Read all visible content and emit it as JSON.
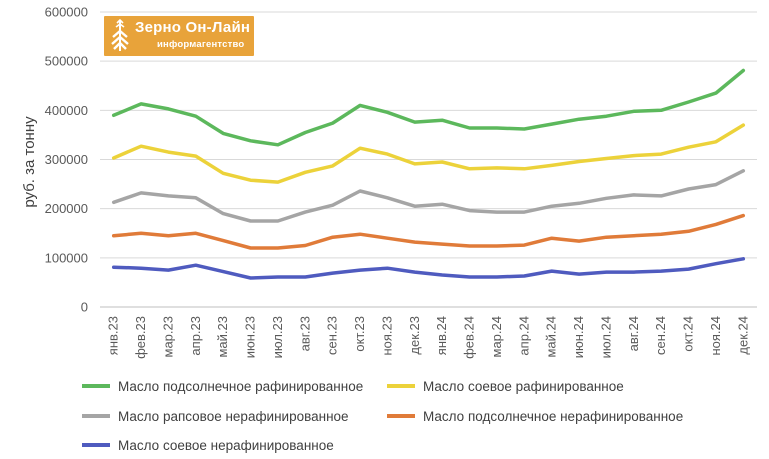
{
  "logo": {
    "title": "Зерно Он-Лайн",
    "subtitle": "информагентство",
    "background_color": "#e8a33a"
  },
  "chart_data": {
    "type": "line",
    "ylabel": "руб. за тонну",
    "ylim": [
      0,
      600000
    ],
    "yticks": [
      "0",
      "100000",
      "200000",
      "300000",
      "400000",
      "500000",
      "600000"
    ],
    "grid": "horizontal",
    "legend_position": "bottom",
    "categories": [
      "янв.23",
      "фев.23",
      "мар.23",
      "апр.23",
      "май.23",
      "июн.23",
      "июл.23",
      "авг.23",
      "сен.23",
      "окт.23",
      "ноя.23",
      "дек.23",
      "янв.24",
      "фев.24",
      "мар.24",
      "апр.24",
      "май.24",
      "июн.24",
      "июл.24",
      "авг.24",
      "сен.24",
      "окт.24",
      "ноя.24",
      "дек.24"
    ],
    "series": [
      {
        "name": "Масло подсолнечное рафинированное",
        "color": "#5cb85c",
        "values": [
          390000,
          413000,
          403000,
          388000,
          353000,
          338000,
          330000,
          355000,
          374000,
          410000,
          396000,
          376000,
          380000,
          364000,
          364000,
          362000,
          372000,
          382000,
          388000,
          398000,
          400000,
          417000,
          435000,
          481000
        ]
      },
      {
        "name": "Масло соевое рафинированное",
        "color": "#ecd23a",
        "values": [
          303000,
          327000,
          315000,
          307000,
          272000,
          258000,
          254000,
          274000,
          287000,
          323000,
          311000,
          291000,
          295000,
          281000,
          283000,
          281000,
          288000,
          296000,
          302000,
          308000,
          311000,
          325000,
          336000,
          370000
        ]
      },
      {
        "name": "Масло рапсовое нерафинированное",
        "color": "#a5a5a5",
        "values": [
          213000,
          232000,
          226000,
          222000,
          190000,
          175000,
          175000,
          193000,
          207000,
          236000,
          222000,
          205000,
          209000,
          196000,
          193000,
          193000,
          205000,
          211000,
          221000,
          228000,
          226000,
          240000,
          249000,
          277000
        ]
      },
      {
        "name": "Масло подсолнечное нерафинированное",
        "color": "#e07b39",
        "values": [
          145000,
          150000,
          145000,
          150000,
          135000,
          120000,
          120000,
          125000,
          142000,
          148000,
          140000,
          132000,
          128000,
          124000,
          124000,
          126000,
          140000,
          134000,
          142000,
          145000,
          148000,
          154000,
          168000,
          186000
        ]
      },
      {
        "name": "Масло соевое нерафинированное",
        "color": "#4f5bbf",
        "values": [
          81000,
          79000,
          75000,
          85000,
          72000,
          59000,
          61000,
          61000,
          69000,
          75000,
          79000,
          71000,
          65000,
          61000,
          61000,
          63000,
          73000,
          67000,
          71000,
          71000,
          73000,
          77000,
          88000,
          98000
        ]
      }
    ]
  }
}
